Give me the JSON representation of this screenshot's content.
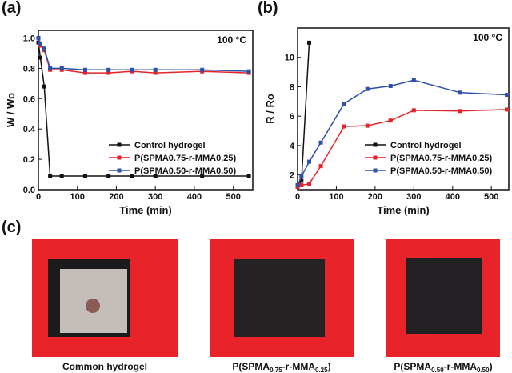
{
  "chart_data": [
    {
      "type": "line",
      "panel_label": "(a)",
      "annotation": "100 °C",
      "xlabel": "Time (min)",
      "ylabel": "W / Wo",
      "xlim": [
        0,
        550
      ],
      "xticks": [
        0,
        100,
        200,
        300,
        400,
        500
      ],
      "ylim": [
        0,
        1.05
      ],
      "yticks": [
        {
          "value": 0,
          "label": "0.0"
        },
        0.2,
        0.4,
        0.6,
        0.8,
        {
          "value": 1,
          "label": "1.0"
        }
      ],
      "legend": "lower right",
      "series": [
        {
          "name": "Control hydrogel",
          "color": "#111111",
          "x": [
            0,
            5,
            15,
            30,
            60,
            120,
            180,
            240,
            300,
            420,
            540
          ],
          "values": [
            0.97,
            0.87,
            0.68,
            0.09,
            0.09,
            0.09,
            0.09,
            0.09,
            0.09,
            0.09,
            0.09
          ]
        },
        {
          "name": "P(SPMA0.75-r-MMA0.25)",
          "color": "#e0262a",
          "x": [
            0,
            5,
            15,
            30,
            60,
            120,
            180,
            240,
            300,
            420,
            540
          ],
          "values": [
            1.0,
            0.95,
            0.92,
            0.79,
            0.79,
            0.77,
            0.77,
            0.78,
            0.77,
            0.78,
            0.77
          ]
        },
        {
          "name": "P(SPMA0.50-r-MMA0.50)",
          "color": "#2f4fa8",
          "x": [
            0,
            5,
            15,
            30,
            60,
            120,
            180,
            240,
            300,
            420,
            540
          ],
          "values": [
            1.0,
            0.96,
            0.93,
            0.8,
            0.8,
            0.79,
            0.79,
            0.79,
            0.79,
            0.79,
            0.78
          ]
        }
      ]
    },
    {
      "type": "line",
      "panel_label": "(b)",
      "annotation": "100 °C",
      "xlabel": "Time (min)",
      "ylabel": "R / Ro",
      "xlim": [
        0,
        545
      ],
      "xticks": [
        0,
        100,
        200,
        300,
        400,
        500
      ],
      "ylim": [
        1,
        12
      ],
      "yticks": [
        2,
        4,
        6,
        8,
        10
      ],
      "legend": "lower right",
      "series": [
        {
          "name": "Control hydrogel",
          "color": "#111111",
          "x": [
            0,
            10,
            30
          ],
          "values": [
            1.2,
            1.6,
            11.0
          ]
        },
        {
          "name": "P(SPMA0.75-r-MMA0.25)",
          "color": "#e0262a",
          "x": [
            0,
            10,
            30,
            60,
            120,
            180,
            240,
            300,
            420,
            540
          ],
          "values": [
            1.2,
            1.3,
            1.4,
            2.6,
            5.3,
            5.35,
            5.7,
            6.4,
            6.35,
            6.45
          ]
        },
        {
          "name": "P(SPMA0.50-r-MMA0.50)",
          "color": "#2f4fa8",
          "x": [
            0,
            10,
            30,
            60,
            120,
            180,
            240,
            300,
            420,
            540
          ],
          "values": [
            1.3,
            1.9,
            2.9,
            4.2,
            6.85,
            7.85,
            8.05,
            8.45,
            7.6,
            7.45
          ]
        }
      ]
    }
  ],
  "panel_c": {
    "label": "(c)",
    "captions": [
      [
        "Common hydrogel"
      ],
      [
        "P(SPMA",
        "0.75",
        "-r-MMA",
        "0.25",
        ")"
      ],
      [
        "P(SPMA",
        "0.50",
        "-r-MMA",
        "0.50",
        ")"
      ]
    ]
  }
}
